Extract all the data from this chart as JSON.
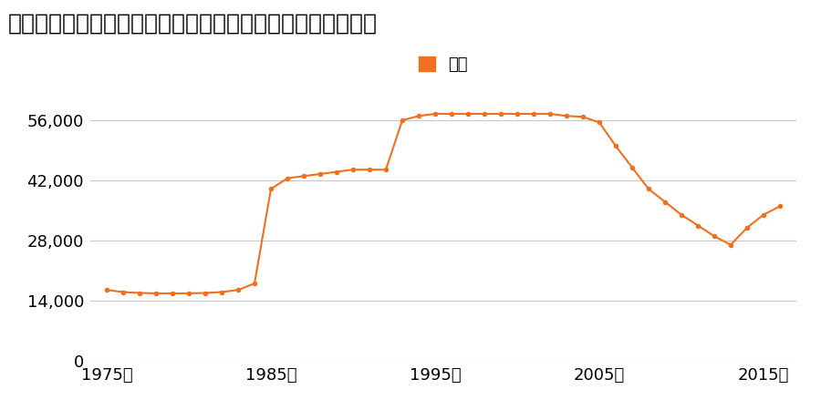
{
  "title": "宮城県宮城郡七ケ浜町菖蒲田浜字野山８番１０８の地価推移",
  "legend_label": "価格",
  "line_color": "#f07020",
  "marker_color": "#f07020",
  "legend_rect_color": "#f07020",
  "background_color": "#ffffff",
  "grid_color": "#c8c8c8",
  "years": [
    1975,
    1976,
    1977,
    1978,
    1979,
    1980,
    1981,
    1982,
    1983,
    1984,
    1985,
    1986,
    1987,
    1988,
    1989,
    1990,
    1991,
    1992,
    1993,
    1994,
    1995,
    1996,
    1997,
    1998,
    1999,
    2000,
    2001,
    2002,
    2003,
    2004,
    2005,
    2006,
    2007,
    2008,
    2009,
    2010,
    2011,
    2012,
    2013,
    2014,
    2015,
    2016
  ],
  "values": [
    16500,
    16000,
    15800,
    15700,
    15700,
    15700,
    15800,
    16000,
    16500,
    18000,
    40000,
    42500,
    43000,
    43500,
    44000,
    44500,
    44500,
    44500,
    56000,
    57000,
    57500,
    57500,
    57500,
    57500,
    57500,
    57500,
    57500,
    57500,
    57000,
    56800,
    55500,
    50000,
    45000,
    40000,
    37000,
    34000,
    31500,
    29000,
    27000,
    31000,
    34000,
    36000
  ],
  "yticks": [
    0,
    14000,
    28000,
    42000,
    56000
  ],
  "ytick_labels": [
    "0",
    "14,000",
    "28,000",
    "42,000",
    "56,000"
  ],
  "xticks": [
    1975,
    1985,
    1995,
    2005,
    2015
  ],
  "xtick_labels": [
    "1975年",
    "1985年",
    "1995年",
    "2005年",
    "2015年"
  ],
  "ylim": [
    0,
    63000
  ],
  "xlim": [
    1974,
    2017
  ],
  "title_fontsize": 18,
  "tick_fontsize": 13,
  "legend_fontsize": 13
}
